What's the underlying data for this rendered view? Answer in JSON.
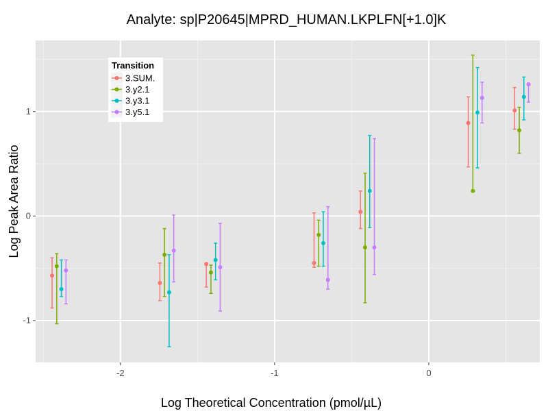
{
  "chart_data": {
    "type": "scatter",
    "title": "Analyte: sp|P20645|MPRD_HUMAN.LKPLFN[+1.0]K",
    "xlabel": "Log Theoretical Concentration (pmol/µL)",
    "ylabel": "Log Peak Area Ratio",
    "xlim": [
      -2.55,
      0.72
    ],
    "ylim": [
      -1.4,
      1.68
    ],
    "x_ticks": [
      -2,
      -1,
      0
    ],
    "x_tick_labels": [
      "-2",
      "-1",
      "0"
    ],
    "y_ticks": [
      -1,
      0,
      1
    ],
    "y_tick_labels": [
      "-1",
      "0",
      "1"
    ],
    "grid": true,
    "error_bars": true,
    "legend": {
      "title": "Transition",
      "position": "top-left"
    },
    "x": [
      -2.398,
      -1.699,
      -1.398,
      -0.699,
      -0.398,
      0.301,
      0.602
    ],
    "series": [
      {
        "name": "3.SUM.",
        "color": "#F8766D",
        "y": [
          -0.57,
          -0.64,
          -0.46,
          -0.45,
          0.04,
          0.89,
          1.01
        ],
        "y_low": [
          -0.88,
          -0.81,
          -0.68,
          -0.49,
          -0.12,
          0.47,
          0.83
        ],
        "y_high": [
          -0.4,
          -0.45,
          -0.45,
          0.03,
          0.24,
          1.14,
          1.23
        ]
      },
      {
        "name": "3.y2.1",
        "color": "#7CAE00",
        "y": [
          -0.48,
          -0.37,
          -0.54,
          -0.18,
          -0.3,
          0.24,
          0.82
        ],
        "y_low": [
          -1.03,
          -0.77,
          -0.74,
          -0.48,
          -0.83,
          0.23,
          0.6
        ],
        "y_high": [
          -0.36,
          -0.12,
          -0.47,
          -0.04,
          0.41,
          1.54,
          1.04
        ]
      },
      {
        "name": "3.y3.1",
        "color": "#00BFC4",
        "y": [
          -0.7,
          -0.73,
          -0.42,
          -0.26,
          0.24,
          0.99,
          1.14
        ],
        "y_low": [
          -0.77,
          -1.25,
          -0.61,
          -0.48,
          -0.11,
          0.46,
          0.92
        ],
        "y_high": [
          -0.42,
          -0.37,
          -0.26,
          0.04,
          0.77,
          1.42,
          1.33
        ]
      },
      {
        "name": "3.y5.1",
        "color": "#C77CFF",
        "y": [
          -0.52,
          -0.33,
          -0.49,
          -0.61,
          -0.3,
          1.13,
          1.26
        ],
        "y_low": [
          -0.84,
          -0.63,
          -0.91,
          -0.7,
          -0.56,
          0.89,
          1.09
        ],
        "y_high": [
          -0.42,
          0.01,
          -0.07,
          0.09,
          0.74,
          1.28,
          1.27
        ]
      }
    ]
  }
}
